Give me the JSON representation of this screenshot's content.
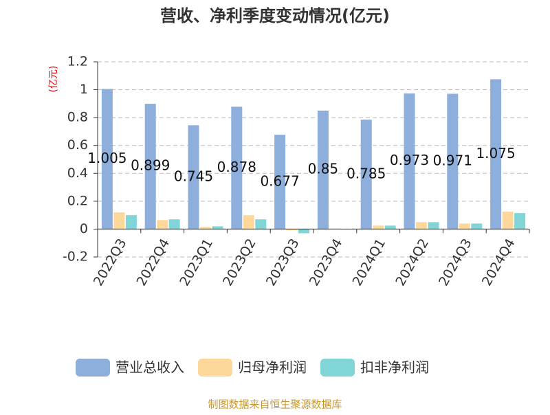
{
  "chart_data": {
    "type": "bar",
    "title": "营收、净利季度变动情况(亿元)",
    "unit_label": "(亿元)",
    "categories": [
      "2022Q3",
      "2022Q4",
      "2023Q1",
      "2023Q2",
      "2023Q3",
      "2023Q4",
      "2024Q1",
      "2024Q2",
      "2024Q3",
      "2024Q4"
    ],
    "series": [
      {
        "name": "营业总收入",
        "color": "#8eaedc",
        "values": [
          1.005,
          0.899,
          0.745,
          0.878,
          0.677,
          0.85,
          0.785,
          0.973,
          0.971,
          1.075
        ]
      },
      {
        "name": "归母净利润",
        "color": "#fdd89a",
        "values": [
          0.12,
          0.065,
          0.015,
          0.1,
          -0.008,
          0.003,
          0.025,
          0.05,
          0.04,
          0.125
        ]
      },
      {
        "name": "扣非净利润",
        "color": "#82d5d7",
        "values": [
          0.1,
          0.07,
          0.02,
          0.07,
          -0.03,
          -0.002,
          0.025,
          0.05,
          0.04,
          0.115
        ]
      }
    ],
    "ylim": [
      -0.2,
      1.2
    ],
    "yticks": [
      -0.2,
      0,
      0.2,
      0.4,
      0.6,
      0.8,
      1,
      1.2
    ],
    "grid": true,
    "source": "制图数据来自恒生聚源数据库"
  }
}
